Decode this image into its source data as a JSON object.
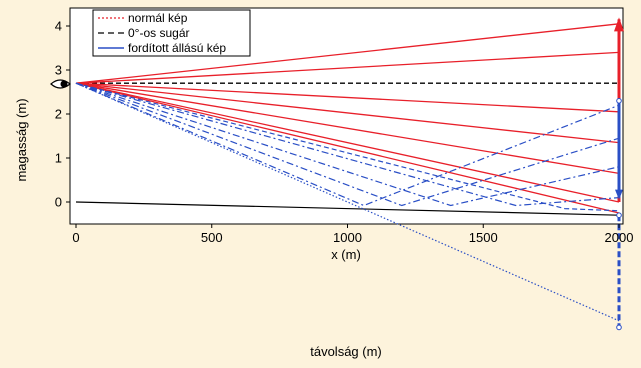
{
  "chart_data": {
    "type": "line",
    "xlabel": "x (m)",
    "ylabel": "magasság (m)",
    "bottom_label": "távolság (m)",
    "xlim": [
      0,
      2000
    ],
    "ylim": [
      -4.5,
      4.3
    ],
    "xticks": [
      0,
      500,
      1000,
      1500,
      2000
    ],
    "xtick_labels": [
      "0",
      "500",
      "1000",
      "1500",
      "2000"
    ],
    "yticks": [
      0,
      1,
      2,
      3,
      4
    ],
    "ytick_labels": [
      "0",
      "1",
      "2",
      "3",
      "4"
    ],
    "legend": {
      "placement": "top-left",
      "entries": [
        {
          "label": "normál kép",
          "color": "#e8202a",
          "dash": "dotted"
        },
        {
          "label": "0°-os sugár",
          "color": "#000000",
          "dash": "dashed"
        },
        {
          "label": "fordított állású kép",
          "color": "#2a4fc6",
          "dash": "solid"
        }
      ]
    },
    "observer": {
      "x": 0,
      "y": 2.7
    },
    "colors": {
      "normal": "#e8202a",
      "inverted": "#2a4fc6",
      "zero_ray": "#000000",
      "ground": "#000000"
    },
    "ground": {
      "x": [
        0,
        2000
      ],
      "y": [
        0,
        -0.3
      ]
    },
    "zero_ray": {
      "x": [
        0,
        2000
      ],
      "y": [
        2.7,
        2.7
      ]
    },
    "normal_rays": [
      {
        "x": [
          0,
          2000
        ],
        "y": [
          2.7,
          4.05
        ]
      },
      {
        "x": [
          0,
          2000
        ],
        "y": [
          2.7,
          3.4
        ]
      },
      {
        "x": [
          0,
          2000
        ],
        "y": [
          2.7,
          2.05
        ]
      },
      {
        "x": [
          0,
          2000
        ],
        "y": [
          2.7,
          1.35
        ]
      },
      {
        "x": [
          0,
          2000
        ],
        "y": [
          2.7,
          0.65
        ]
      },
      {
        "x": [
          0,
          2000
        ],
        "y": [
          2.7,
          0.0
        ]
      },
      {
        "x": [
          0,
          2000
        ],
        "y": [
          2.7,
          -0.25
        ]
      }
    ],
    "inverted_rays": [
      {
        "x": [
          0,
          1060,
          2000
        ],
        "y": [
          2.7,
          -0.08,
          2.2
        ],
        "dash": "dashdot"
      },
      {
        "x": [
          0,
          1200,
          2000
        ],
        "y": [
          2.7,
          -0.08,
          1.45
        ],
        "dash": "dashdot"
      },
      {
        "x": [
          0,
          1380,
          2000
        ],
        "y": [
          2.7,
          -0.08,
          0.8
        ],
        "dash": "dashdot"
      },
      {
        "x": [
          0,
          1620,
          2000
        ],
        "y": [
          2.7,
          -0.08,
          0.1
        ],
        "dash": "dashdot"
      },
      {
        "x": [
          0,
          1800,
          2000
        ],
        "y": [
          2.7,
          -0.15,
          -0.2
        ],
        "dash": "dashed"
      },
      {
        "x": [
          0,
          2000
        ],
        "y": [
          2.7,
          -2.7
        ],
        "dash": "dotted"
      }
    ],
    "right_bars": [
      {
        "color": "#e8202a",
        "from": 0.0,
        "to": 4.15,
        "style": "solid",
        "arrow": "up"
      },
      {
        "color": "#2a4fc6",
        "from": 2.3,
        "to": 0.1,
        "style": "solid",
        "arrow": "down"
      },
      {
        "color": "#2a4fc6",
        "from": -0.3,
        "to": -2.85,
        "style": "dashed",
        "arrow": "none"
      }
    ]
  }
}
